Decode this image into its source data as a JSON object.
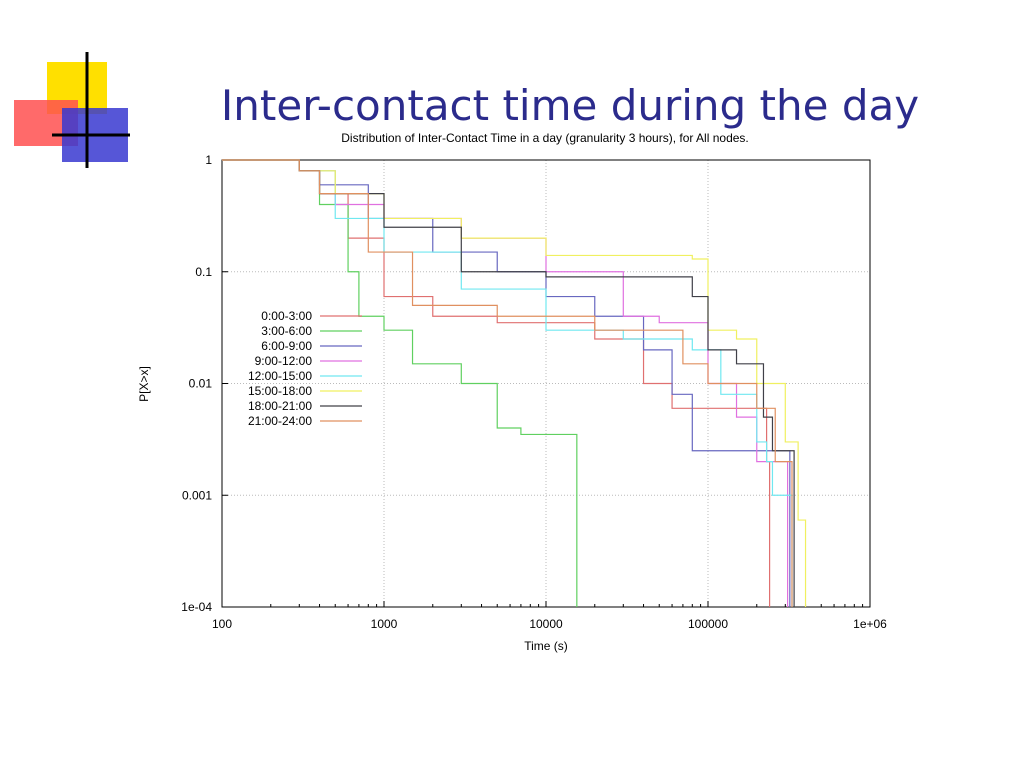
{
  "slide_title": "Inter-contact time during the day",
  "chart_data": {
    "type": "line",
    "title": "Distribution of Inter-Contact Time in a day (granularity 3 hours), for All nodes.",
    "xlabel": "Time (s)",
    "ylabel": "P[X>x]",
    "xscale": "log",
    "yscale": "log",
    "grid": true,
    "legend": "upper left",
    "step": true,
    "xlim": [
      100,
      1000000
    ],
    "ylim": [
      0.0001,
      1
    ],
    "xticks": [
      100,
      1000,
      10000,
      100000,
      {
        "value": 1000000,
        "label": "1e+06"
      }
    ],
    "yticks": [
      {
        "value": 0.0001,
        "label": "1e-04"
      },
      0.001,
      0.01,
      0.1,
      1
    ],
    "series": [
      {
        "name": "0:00-3:00",
        "color": "#e07070",
        "x": [
          100,
          300,
          400,
          600,
          1000,
          2000,
          5000,
          20000,
          40000,
          60000,
          150000,
          230000,
          240000
        ],
        "values": [
          1,
          0.8,
          0.5,
          0.2,
          0.06,
          0.04,
          0.035,
          0.025,
          0.01,
          0.006,
          0.006,
          0.002,
          0.0001
        ]
      },
      {
        "name": "3:00-6:00",
        "color": "#60d060",
        "x": [
          100,
          300,
          400,
          600,
          700,
          1000,
          1500,
          3000,
          5000,
          7000,
          15000,
          15500
        ],
        "values": [
          1,
          0.8,
          0.4,
          0.1,
          0.04,
          0.03,
          0.015,
          0.01,
          0.004,
          0.0035,
          0.0035,
          0.0001
        ]
      },
      {
        "name": "6:00-9:00",
        "color": "#6868c0",
        "x": [
          100,
          300,
          400,
          800,
          2000,
          5000,
          10000,
          20000,
          40000,
          60000,
          80000,
          200000,
          320000
        ],
        "values": [
          1,
          0.8,
          0.6,
          0.3,
          0.15,
          0.1,
          0.06,
          0.04,
          0.02,
          0.008,
          0.0025,
          0.0025,
          0.0001
        ]
      },
      {
        "name": "9:00-12:00",
        "color": "#e070e0",
        "x": [
          100,
          300,
          500,
          1000,
          3000,
          10000,
          30000,
          50000,
          80000,
          100000,
          150000,
          200000,
          310000
        ],
        "values": [
          1,
          0.8,
          0.4,
          0.3,
          0.2,
          0.1,
          0.04,
          0.035,
          0.035,
          0.01,
          0.005,
          0.002,
          0.0001
        ]
      },
      {
        "name": "12:00-15:00",
        "color": "#70e8f0",
        "x": [
          100,
          300,
          500,
          1000,
          3000,
          10000,
          30000,
          80000,
          120000,
          200000,
          230000,
          250000,
          330000
        ],
        "values": [
          1,
          0.8,
          0.3,
          0.15,
          0.07,
          0.03,
          0.025,
          0.02,
          0.008,
          0.003,
          0.002,
          0.001,
          0.0001
        ]
      },
      {
        "name": "15:00-18:00",
        "color": "#f0f060",
        "x": [
          100,
          300,
          500,
          1000,
          3000,
          10000,
          80000,
          100000,
          150000,
          200000,
          300000,
          360000,
          400000
        ],
        "values": [
          1,
          0.8,
          0.5,
          0.3,
          0.2,
          0.14,
          0.13,
          0.03,
          0.025,
          0.01,
          0.003,
          0.0006,
          0.0001
        ]
      },
      {
        "name": "18:00-21:00",
        "color": "#404048",
        "x": [
          100,
          300,
          400,
          1000,
          3000,
          10000,
          60000,
          80000,
          100000,
          150000,
          220000,
          250000,
          340000
        ],
        "values": [
          1,
          0.8,
          0.5,
          0.25,
          0.1,
          0.09,
          0.09,
          0.06,
          0.02,
          0.015,
          0.005,
          0.0025,
          0.0001
        ]
      },
      {
        "name": "21:00-24:00",
        "color": "#e09060",
        "x": [
          100,
          300,
          400,
          800,
          1500,
          5000,
          20000,
          40000,
          70000,
          100000,
          200000,
          260000,
          330000
        ],
        "values": [
          1,
          0.8,
          0.5,
          0.15,
          0.05,
          0.04,
          0.03,
          0.03,
          0.015,
          0.01,
          0.006,
          0.002,
          0.0001
        ]
      }
    ]
  }
}
